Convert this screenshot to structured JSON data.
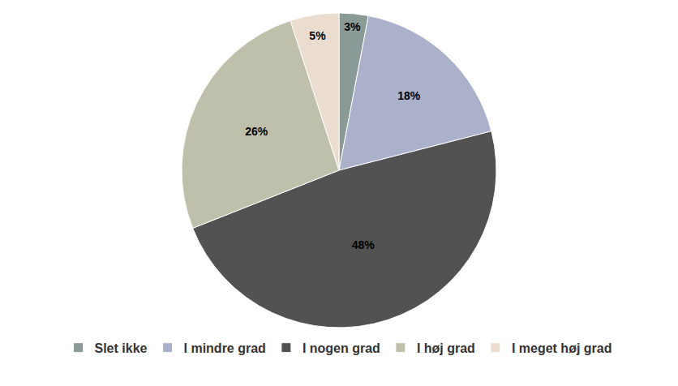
{
  "chart_data": {
    "type": "pie",
    "categories": [
      "Slet ikke",
      "I mindre grad",
      "I nogen grad",
      "I høj grad",
      "I meget høj grad"
    ],
    "values": [
      3,
      18,
      48,
      26,
      5
    ],
    "value_labels": [
      "3%",
      "18%",
      "48%",
      "26%",
      "5%"
    ],
    "colors": [
      "#8a9a96",
      "#abb1cb",
      "#525252",
      "#bfc0ac",
      "#eaddd0"
    ],
    "data_labels": true,
    "legend": "bottom"
  }
}
